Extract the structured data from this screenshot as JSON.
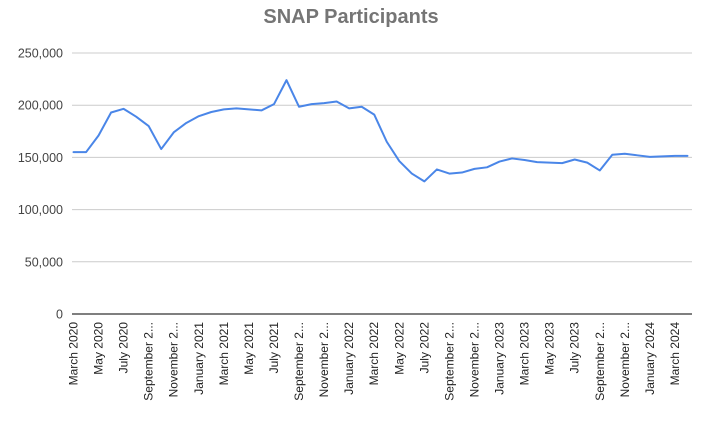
{
  "chart_data": {
    "type": "line",
    "title": "SNAP Participants",
    "xlabel": "",
    "ylabel": "",
    "ylim": [
      0,
      250000
    ],
    "y_ticks": [
      "0",
      "50,000",
      "100,000",
      "150,000",
      "200,000",
      "250,000"
    ],
    "y_tick_values": [
      0,
      50000,
      100000,
      150000,
      200000,
      250000
    ],
    "grid": true,
    "x_tick_labels": [
      "March 2020",
      "May 2020",
      "July 2020",
      "September 2...",
      "November 2...",
      "January 2021",
      "March 2021",
      "May 2021",
      "July 2021",
      "September 2...",
      "November 2...",
      "January 2022",
      "March 2022",
      "May 2022",
      "July 2022",
      "September 2...",
      "November 2...",
      "January 2023",
      "March 2023",
      "May 2023",
      "July 2023",
      "September 2...",
      "November 2...",
      "January 2024",
      "March 2024"
    ],
    "series": [
      {
        "name": "",
        "color": "#4a86e8",
        "x": [
          "March 2020",
          "April 2020",
          "May 2020",
          "June 2020",
          "July 2020",
          "August 2020",
          "September 2020",
          "October 2020",
          "November 2020",
          "December 2020",
          "January 2021",
          "February 2021",
          "March 2021",
          "April 2021",
          "May 2021",
          "June 2021",
          "July 2021",
          "August 2021",
          "September 2021",
          "October 2021",
          "November 2021",
          "December 2021",
          "January 2022",
          "February 2022",
          "March 2022",
          "April 2022",
          "May 2022",
          "June 2022",
          "July 2022",
          "August 2022",
          "September 2022",
          "October 2022",
          "November 2022",
          "December 2022",
          "January 2023",
          "February 2023",
          "March 2023",
          "April 2023",
          "May 2023",
          "June 2023",
          "July 2023",
          "August 2023",
          "September 2023",
          "October 2023",
          "November 2023",
          "December 2023",
          "January 2024",
          "February 2024",
          "March 2024",
          "April 2024"
        ],
        "values": [
          155000,
          155000,
          171000,
          193000,
          196500,
          189000,
          180000,
          158000,
          174000,
          183000,
          189500,
          193500,
          196000,
          197000,
          196000,
          195000,
          201000,
          224000,
          198500,
          201000,
          202000,
          203500,
          197000,
          198500,
          191000,
          165000,
          146500,
          134500,
          127000,
          138500,
          134500,
          135500,
          139000,
          140500,
          146000,
          149000,
          147500,
          145500,
          145000,
          144500,
          148000,
          145000,
          137500,
          152500,
          153500,
          152000,
          150500,
          151000,
          151500,
          151500
        ]
      }
    ]
  }
}
